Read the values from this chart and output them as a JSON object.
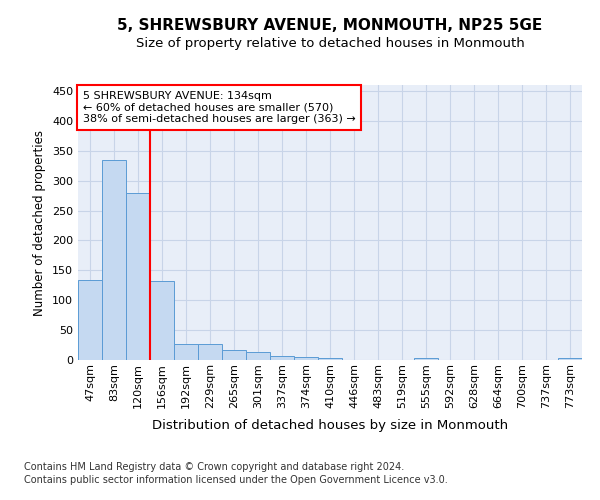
{
  "title1": "5, SHREWSBURY AVENUE, MONMOUTH, NP25 5GE",
  "title2": "Size of property relative to detached houses in Monmouth",
  "xlabel": "Distribution of detached houses by size in Monmouth",
  "ylabel": "Number of detached properties",
  "footnote1": "Contains HM Land Registry data © Crown copyright and database right 2024.",
  "footnote2": "Contains public sector information licensed under the Open Government Licence v3.0.",
  "categories": [
    "47sqm",
    "83sqm",
    "120sqm",
    "156sqm",
    "192sqm",
    "229sqm",
    "265sqm",
    "301sqm",
    "337sqm",
    "374sqm",
    "410sqm",
    "446sqm",
    "483sqm",
    "519sqm",
    "555sqm",
    "592sqm",
    "628sqm",
    "664sqm",
    "700sqm",
    "737sqm",
    "773sqm"
  ],
  "values": [
    133,
    335,
    280,
    132,
    27,
    27,
    17,
    13,
    7,
    5,
    4,
    0,
    0,
    0,
    4,
    0,
    0,
    0,
    0,
    0,
    4
  ],
  "bar_color": "#c5d9f1",
  "bar_edge_color": "#5b9bd5",
  "vline_x": 2.0,
  "vline_color": "red",
  "annotation_text": "5 SHREWSBURY AVENUE: 134sqm\n← 60% of detached houses are smaller (570)\n38% of semi-detached houses are larger (363) →",
  "annotation_box_color": "white",
  "annotation_box_edge_color": "red",
  "ylim": [
    0,
    460
  ],
  "yticks": [
    0,
    50,
    100,
    150,
    200,
    250,
    300,
    350,
    400,
    450
  ],
  "grid_color": "#c8d4e8",
  "bg_color": "#e8eef8",
  "title1_fontsize": 11,
  "title2_fontsize": 9.5,
  "xlabel_fontsize": 9.5,
  "ylabel_fontsize": 8.5,
  "tick_fontsize": 8,
  "annotation_fontsize": 8,
  "footnote_fontsize": 7
}
